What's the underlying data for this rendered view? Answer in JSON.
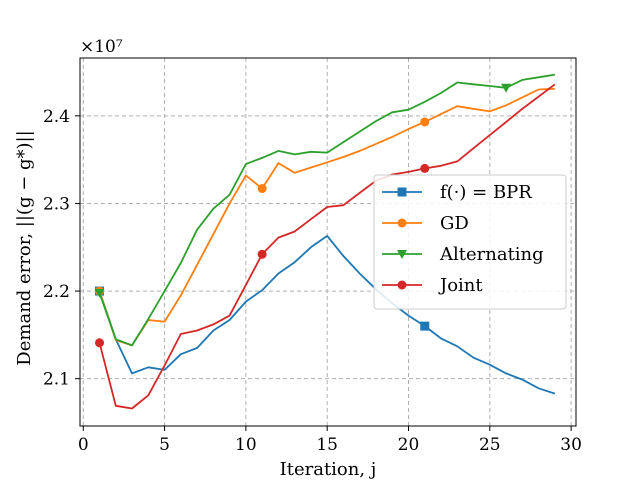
{
  "chart_data": {
    "type": "line",
    "title": "",
    "xlabel": "Iteration, j",
    "ylabel": "Demand error, ||(g − g*)||",
    "offset_label": "×10⁷",
    "xlim": [
      -0.2,
      30.3
    ],
    "ylim": [
      20.46,
      24.66
    ],
    "x_ticks": [
      0,
      5,
      10,
      15,
      20,
      25,
      30
    ],
    "x_tick_labels": [
      "0",
      "5",
      "10",
      "15",
      "20",
      "25",
      "30"
    ],
    "y_ticks": [
      21.0,
      22.0,
      23.0,
      24.0
    ],
    "y_tick_labels": [
      "2.1",
      "2.2",
      "2.3",
      "2.4"
    ],
    "grid": true,
    "legend_placement": "center-right",
    "series": [
      {
        "name": "f(·) = BPR",
        "color": "#1f77b4",
        "marker": "square",
        "marker_x": [
          1,
          21
        ],
        "x": [
          1,
          2,
          3,
          4,
          5,
          6,
          7,
          8,
          9,
          10,
          11,
          12,
          13,
          14,
          15,
          16,
          17,
          18,
          19,
          20,
          21,
          22,
          23,
          24,
          25,
          26,
          27,
          28,
          29
        ],
        "values": [
          22.0,
          21.45,
          21.06,
          21.13,
          21.1,
          21.28,
          21.35,
          21.55,
          21.67,
          21.88,
          22.01,
          22.2,
          22.33,
          22.5,
          22.63,
          22.4,
          22.2,
          22.02,
          21.86,
          21.72,
          21.6,
          21.46,
          21.37,
          21.24,
          21.16,
          21.06,
          20.99,
          20.89,
          20.83
        ]
      },
      {
        "name": "GD",
        "color": "#ff7f0e",
        "marker": "circle",
        "marker_x": [
          1,
          11,
          21
        ],
        "x": [
          1,
          2,
          3,
          4,
          5,
          6,
          7,
          8,
          9,
          10,
          11,
          12,
          13,
          14,
          15,
          16,
          17,
          18,
          19,
          20,
          21,
          22,
          23,
          24,
          25,
          26,
          27,
          28,
          29
        ],
        "values": [
          22.0,
          21.44,
          21.38,
          21.67,
          21.65,
          21.95,
          22.3,
          22.65,
          23.0,
          23.32,
          23.17,
          23.46,
          23.35,
          23.41,
          23.47,
          23.53,
          23.6,
          23.68,
          23.76,
          23.85,
          23.93,
          24.02,
          24.11,
          24.08,
          24.05,
          24.12,
          24.21,
          24.3,
          24.31
        ]
      },
      {
        "name": "Alternating",
        "color": "#2ca02c",
        "marker": "triangle-down",
        "marker_x": [
          1,
          26
        ],
        "x": [
          1,
          2,
          3,
          4,
          5,
          6,
          7,
          8,
          9,
          10,
          11,
          12,
          13,
          14,
          15,
          16,
          17,
          18,
          19,
          20,
          21,
          22,
          23,
          24,
          25,
          26,
          27,
          28,
          29
        ],
        "values": [
          21.98,
          21.45,
          21.38,
          21.68,
          22.0,
          22.32,
          22.7,
          22.94,
          23.1,
          23.45,
          23.52,
          23.6,
          23.56,
          23.59,
          23.58,
          23.7,
          23.82,
          23.94,
          24.04,
          24.07,
          24.16,
          24.26,
          24.38,
          24.36,
          24.34,
          24.32,
          24.41,
          24.44,
          24.47
        ]
      },
      {
        "name": "Joint",
        "color": "#d62728",
        "marker": "circle",
        "marker_x": [
          1,
          11,
          21
        ],
        "x": [
          1,
          2,
          3,
          4,
          5,
          6,
          7,
          8,
          9,
          10,
          11,
          12,
          13,
          14,
          15,
          16,
          17,
          18,
          19,
          20,
          21,
          22,
          23,
          24,
          25,
          26,
          27,
          28,
          29
        ],
        "values": [
          21.41,
          20.69,
          20.66,
          20.81,
          21.15,
          21.51,
          21.55,
          21.62,
          21.72,
          22.07,
          22.42,
          22.61,
          22.68,
          22.82,
          22.96,
          22.98,
          23.12,
          23.26,
          23.33,
          23.36,
          23.4,
          23.43,
          23.48,
          23.63,
          23.78,
          23.93,
          24.08,
          24.22,
          24.36
        ]
      }
    ]
  }
}
